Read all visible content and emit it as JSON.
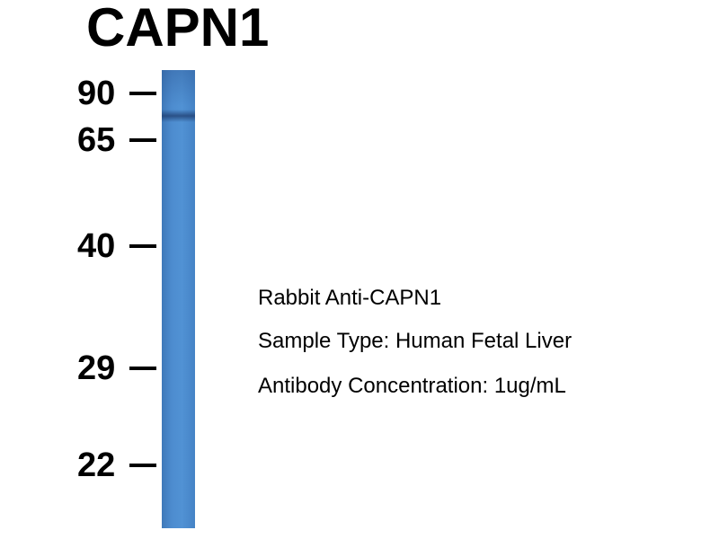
{
  "title": "CAPN1",
  "markers": [
    {
      "label": "90"
    },
    {
      "label": "65"
    },
    {
      "label": "40"
    },
    {
      "label": "29"
    },
    {
      "label": "22"
    }
  ],
  "lane": {
    "color": "#4a88cb",
    "band_color": "#2a4f86"
  },
  "info": {
    "antibody": "Rabbit Anti-CAPN1",
    "sample": "Sample Type: Human Fetal Liver",
    "concentration": "Antibody Concentration: 1ug/mL"
  }
}
